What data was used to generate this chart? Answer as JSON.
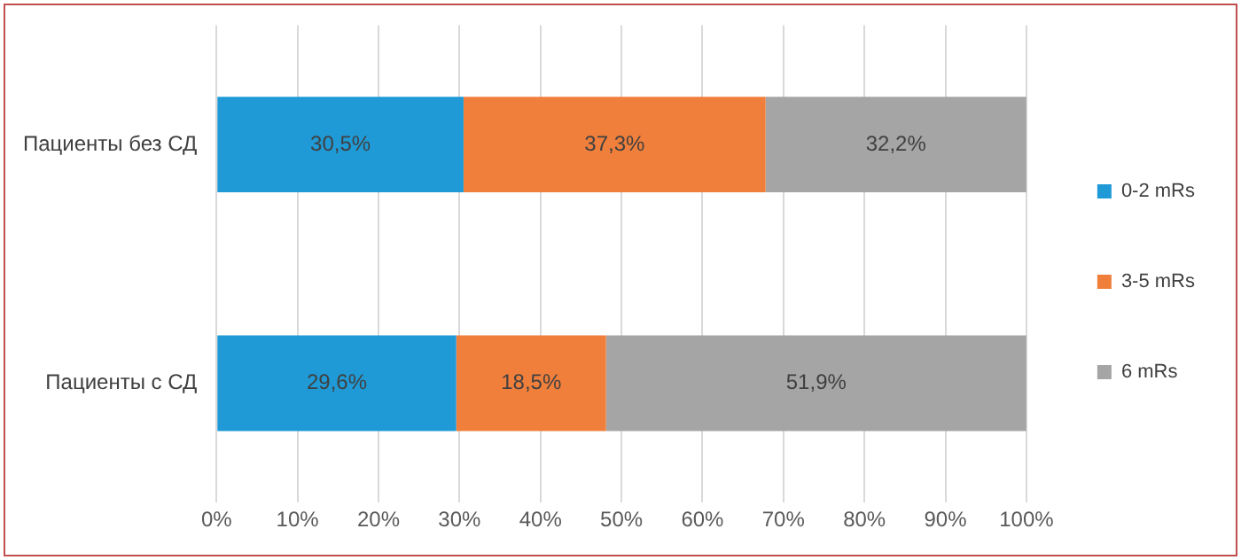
{
  "chart_data": {
    "type": "bar",
    "orientation": "horizontal",
    "stacked": true,
    "categories": [
      "Пациенты без СД",
      "Пациенты с СД"
    ],
    "series": [
      {
        "name": "0-2 mRs",
        "color": "#1f9ad6",
        "values": [
          30.5,
          29.6
        ],
        "value_labels": [
          "30,5%",
          "29,6%"
        ]
      },
      {
        "name": "3-5 mRs",
        "color": "#f07f3c",
        "values": [
          37.3,
          18.5
        ],
        "value_labels": [
          "37,3%",
          "18,5%"
        ]
      },
      {
        "name": "6 mRs",
        "color": "#a5a5a5",
        "values": [
          32.2,
          51.9
        ],
        "value_labels": [
          "32,2%",
          "51,9%"
        ]
      }
    ],
    "xlim": [
      0,
      100
    ],
    "xticks": [
      {
        "value": 0,
        "label": "0%"
      },
      {
        "value": 10,
        "label": "10%"
      },
      {
        "value": 20,
        "label": "20%"
      },
      {
        "value": 30,
        "label": "30%"
      },
      {
        "value": 40,
        "label": "40%"
      },
      {
        "value": 50,
        "label": "50%"
      },
      {
        "value": 60,
        "label": "60%"
      },
      {
        "value": 70,
        "label": "70%"
      },
      {
        "value": 80,
        "label": "80%"
      },
      {
        "value": 90,
        "label": "90%"
      },
      {
        "value": 100,
        "label": "100%"
      }
    ],
    "grid": "x",
    "legend": "right"
  }
}
